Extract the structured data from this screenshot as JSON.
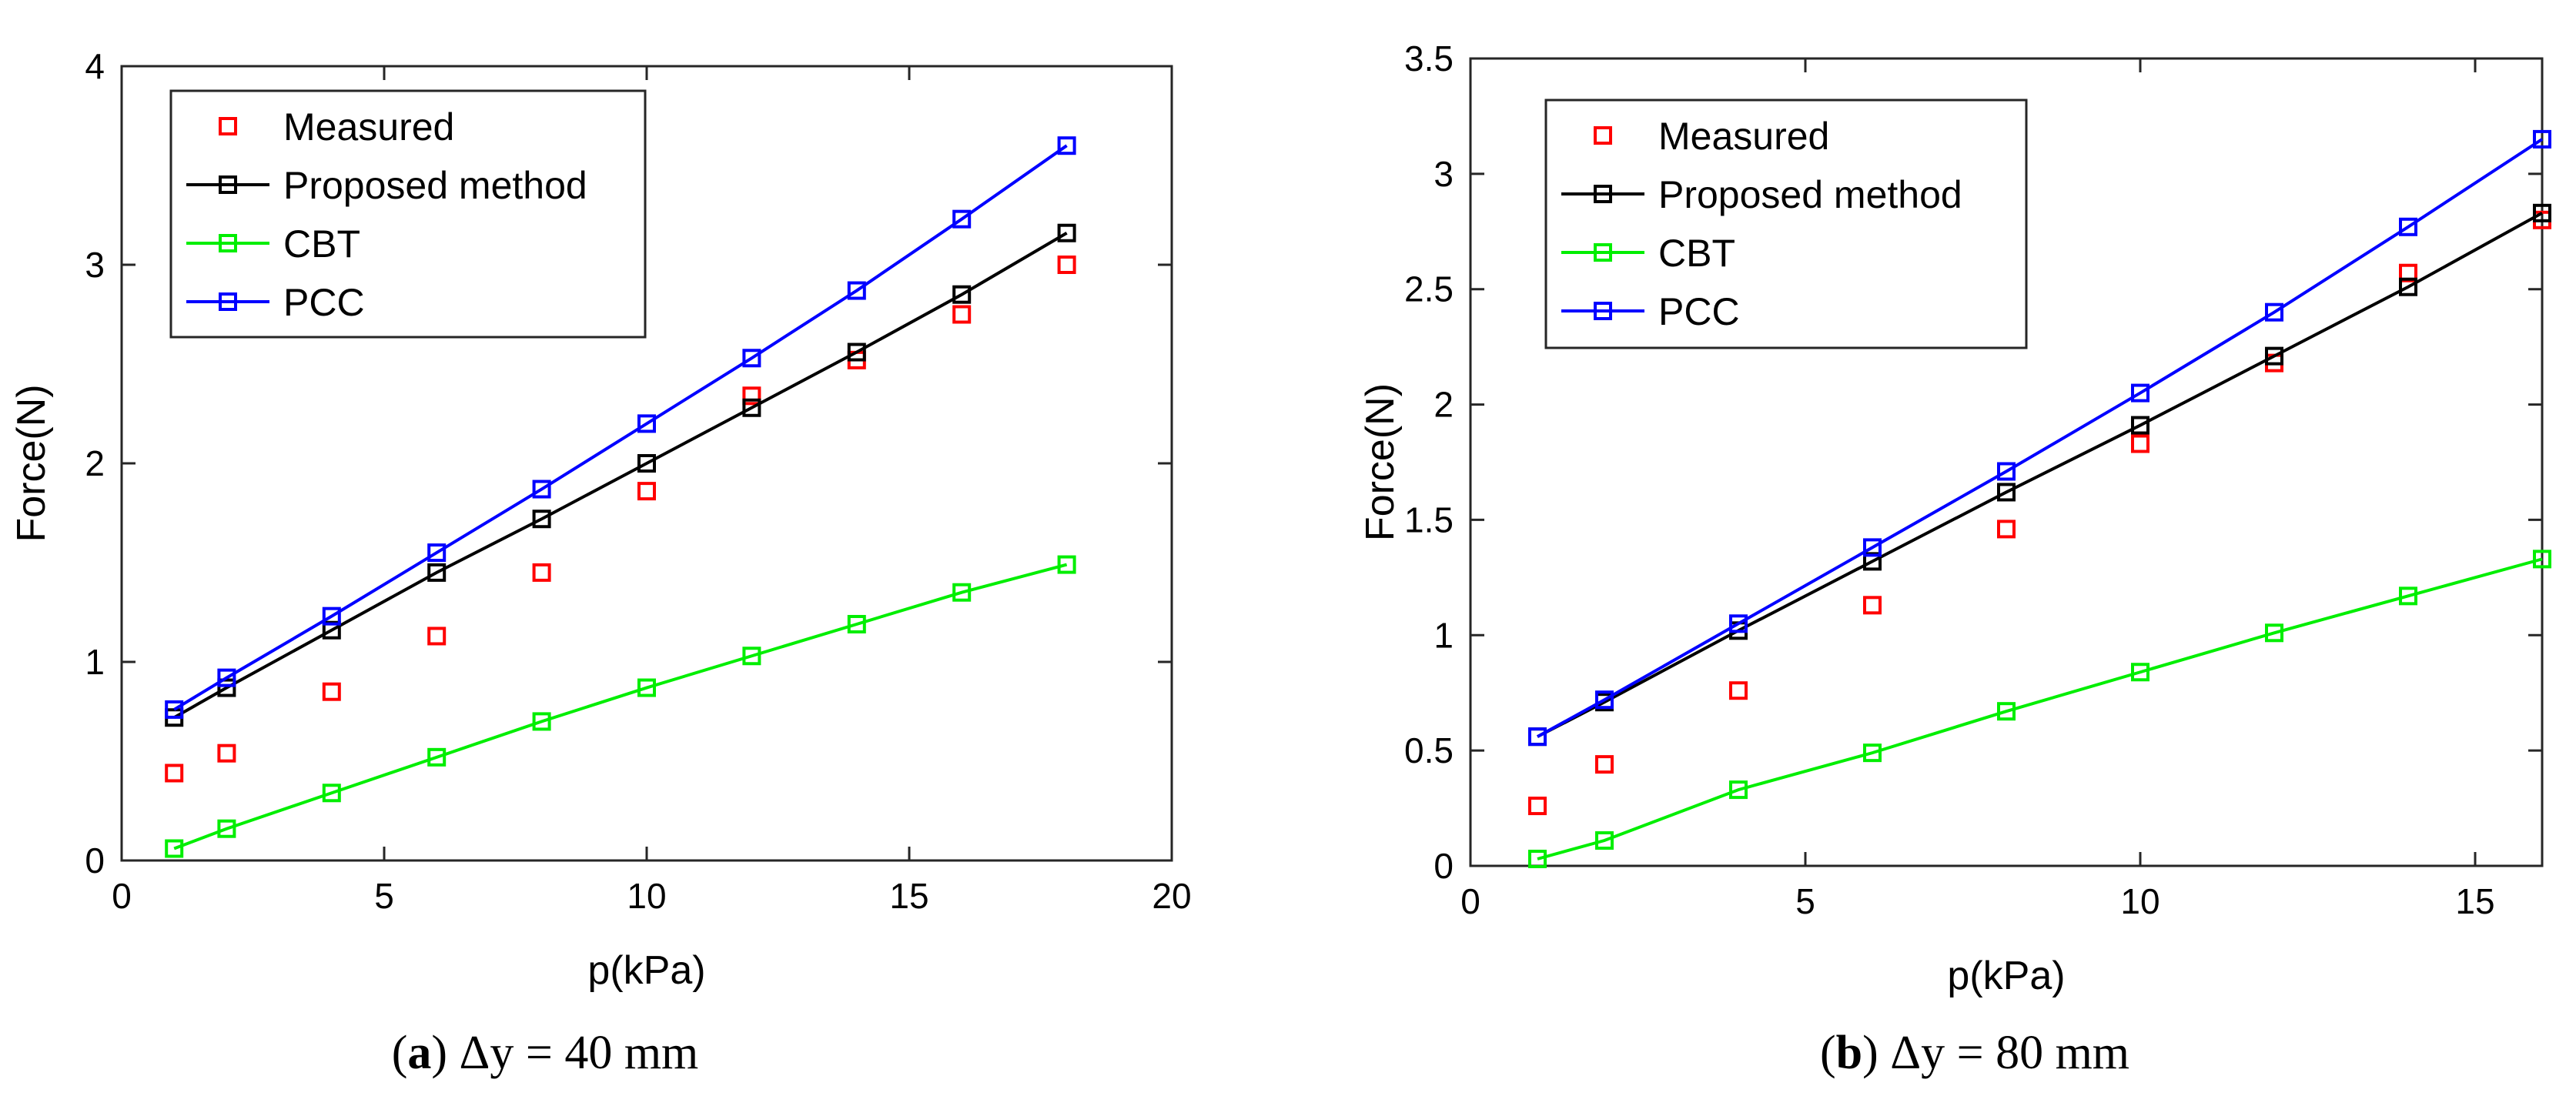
{
  "chart_data": [
    {
      "type": "line",
      "caption_id": "a",
      "caption_text": "Δy = 40 mm",
      "xlabel": "p(kPa)",
      "ylabel": "Force(N)",
      "xlim": [
        0,
        20
      ],
      "ylim": [
        0,
        4
      ],
      "xticks": [
        0,
        5,
        10,
        15,
        20
      ],
      "yticks": [
        0,
        1,
        2,
        3,
        4
      ],
      "xtick_labels": [
        "0",
        "5",
        "10",
        "15",
        "20"
      ],
      "ytick_labels": [
        "0",
        "1",
        "2",
        "3",
        "4"
      ],
      "grid": false,
      "legend_position": "top-left",
      "series": [
        {
          "name": "Measured",
          "color": "#ff0000",
          "style": "markers",
          "x": [
            1,
            2,
            4,
            6,
            8,
            10,
            12,
            14,
            16,
            18
          ],
          "y": [
            0.44,
            0.54,
            0.85,
            1.13,
            1.45,
            1.86,
            2.34,
            2.52,
            2.75,
            3.0
          ]
        },
        {
          "name": "Proposed method",
          "color": "#000000",
          "style": "line+markers",
          "x": [
            1,
            2,
            4,
            6,
            8,
            10,
            12,
            14,
            16,
            18
          ],
          "y": [
            0.72,
            0.87,
            1.16,
            1.45,
            1.72,
            2.0,
            2.28,
            2.56,
            2.85,
            3.16
          ]
        },
        {
          "name": "CBT",
          "color": "#00ee00",
          "style": "line+markers",
          "x": [
            1,
            2,
            4,
            6,
            8,
            10,
            12,
            14,
            16,
            18
          ],
          "y": [
            0.06,
            0.16,
            0.34,
            0.52,
            0.7,
            0.87,
            1.03,
            1.19,
            1.35,
            1.49
          ]
        },
        {
          "name": "PCC",
          "color": "#0000ff",
          "style": "line+markers",
          "x": [
            1,
            2,
            4,
            6,
            8,
            10,
            12,
            14,
            16,
            18
          ],
          "y": [
            0.76,
            0.92,
            1.23,
            1.55,
            1.87,
            2.2,
            2.53,
            2.87,
            3.23,
            3.6
          ]
        }
      ]
    },
    {
      "type": "line",
      "caption_id": "b",
      "caption_text": "Δy = 80 mm",
      "xlabel": "p(kPa)",
      "ylabel": "Force(N)",
      "xlim": [
        0,
        16
      ],
      "ylim": [
        0,
        3.5
      ],
      "xticks": [
        0,
        5,
        10,
        15
      ],
      "yticks": [
        0,
        0.5,
        1,
        1.5,
        2,
        2.5,
        3,
        3.5
      ],
      "xtick_labels": [
        "0",
        "5",
        "10",
        "15"
      ],
      "ytick_labels": [
        "0",
        "0.5",
        "1",
        "1.5",
        "2",
        "2.5",
        "3",
        "3.5"
      ],
      "grid": false,
      "legend_position": "top-left",
      "series": [
        {
          "name": "Measured",
          "color": "#ff0000",
          "style": "markers",
          "x": [
            1,
            2,
            4,
            6,
            8,
            10,
            12,
            14,
            16
          ],
          "y": [
            0.26,
            0.44,
            0.76,
            1.13,
            1.46,
            1.83,
            2.18,
            2.57,
            2.8
          ]
        },
        {
          "name": "Proposed method",
          "color": "#000000",
          "style": "line+markers",
          "x": [
            1,
            2,
            4,
            6,
            8,
            10,
            12,
            14,
            16
          ],
          "y": [
            0.56,
            0.71,
            1.02,
            1.32,
            1.62,
            1.91,
            2.21,
            2.51,
            2.83
          ]
        },
        {
          "name": "CBT",
          "color": "#00ee00",
          "style": "line+markers",
          "x": [
            1,
            2,
            4,
            6,
            8,
            10,
            12,
            14,
            16
          ],
          "y": [
            0.03,
            0.11,
            0.33,
            0.49,
            0.67,
            0.84,
            1.01,
            1.17,
            1.33
          ]
        },
        {
          "name": "PCC",
          "color": "#0000ff",
          "style": "line+markers",
          "x": [
            1,
            2,
            4,
            6,
            8,
            10,
            12,
            14,
            16
          ],
          "y": [
            0.56,
            0.72,
            1.05,
            1.38,
            1.71,
            2.05,
            2.4,
            2.77,
            3.15
          ]
        }
      ]
    }
  ]
}
